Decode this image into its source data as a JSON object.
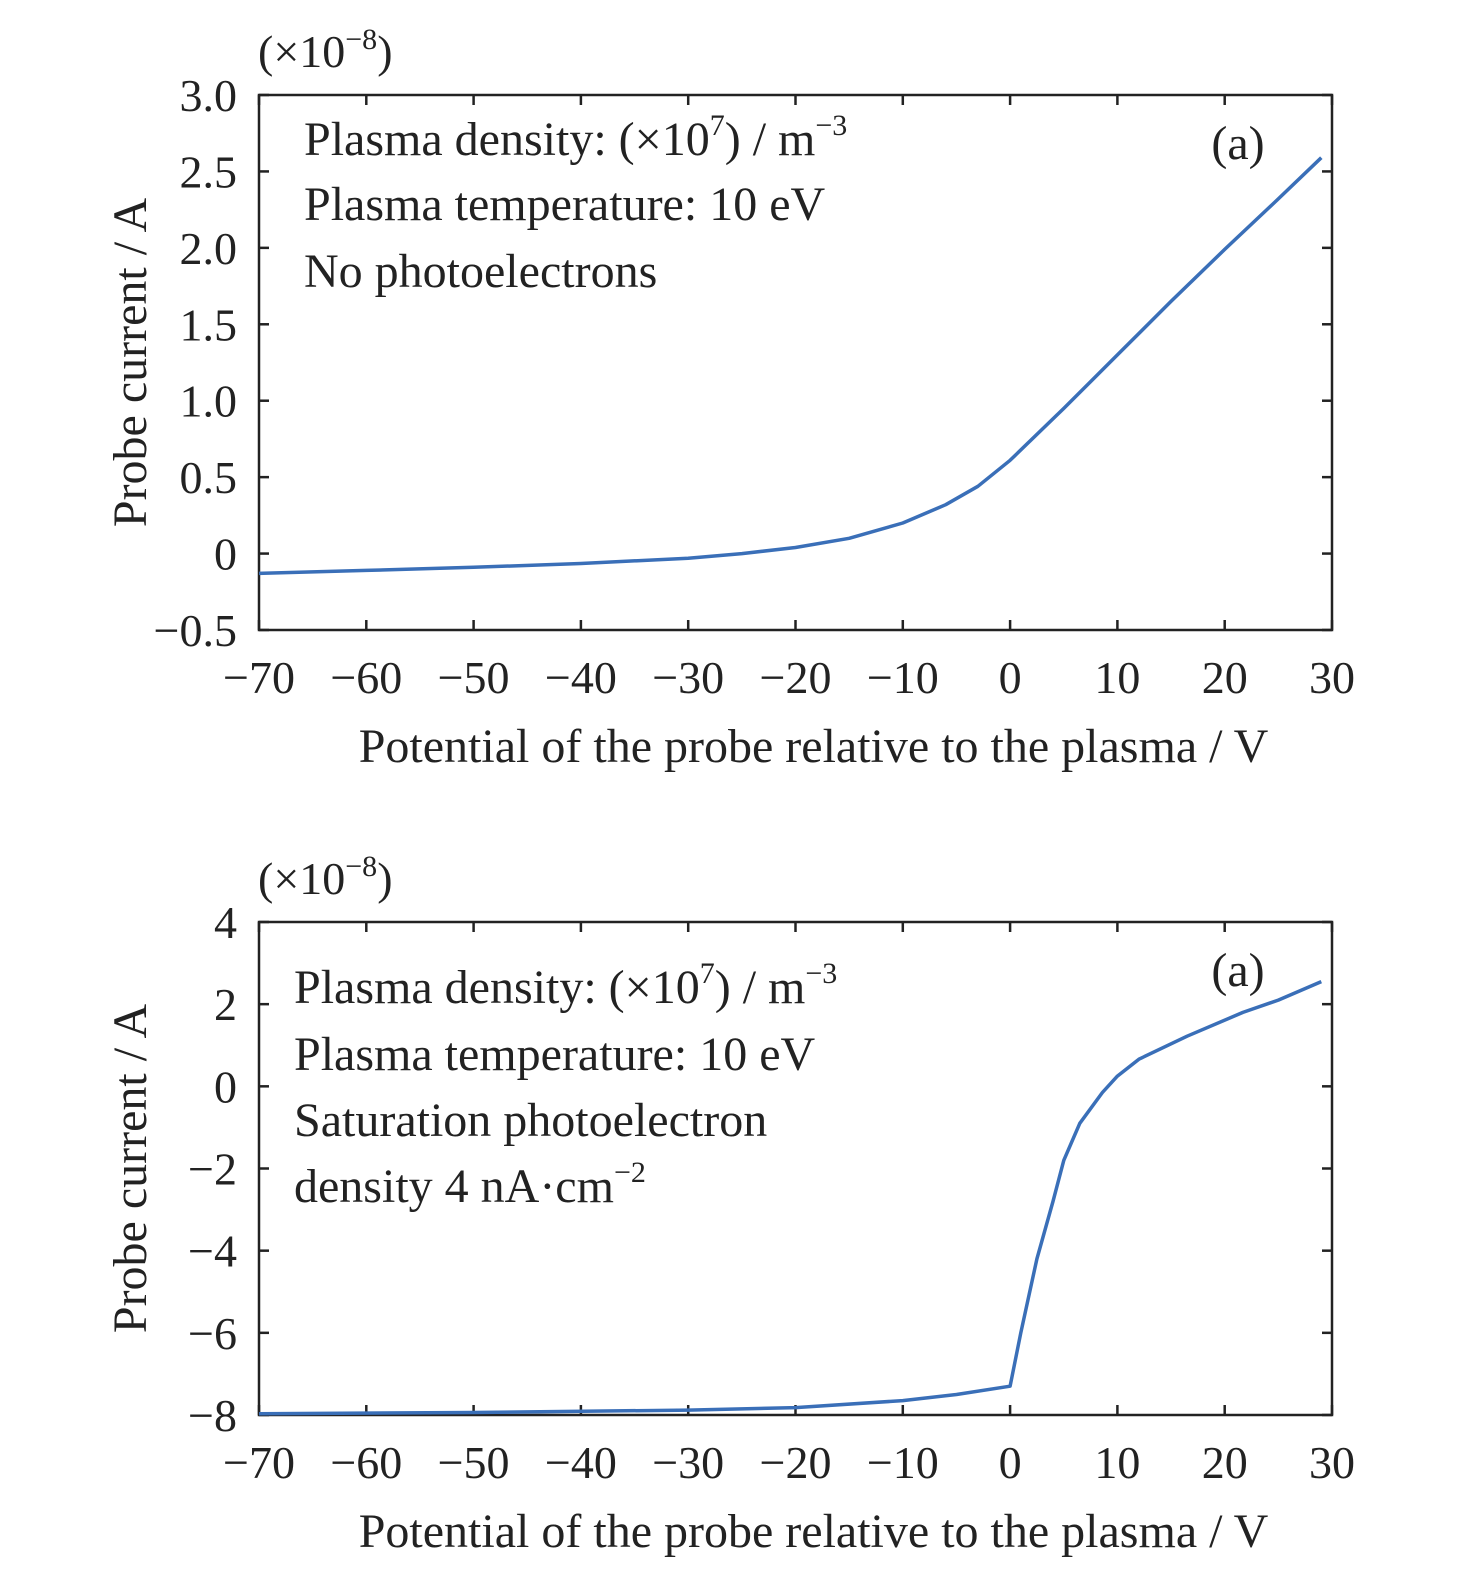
{
  "chart_data": [
    {
      "type": "line",
      "panel_label": "(a)",
      "multiplier": "(×10",
      "multiplier_exp": "−8",
      "multiplier_close": ")",
      "xlabel": "Potential of the probe relative to the plasma / V",
      "ylabel": "Probe current / A",
      "xlim": [
        -70,
        30
      ],
      "ylim": [
        -0.5,
        3.0
      ],
      "xticks": [
        -70,
        -60,
        -50,
        -40,
        -30,
        -20,
        -10,
        0,
        10,
        20,
        30
      ],
      "xtick_labels": [
        "−70",
        "−60",
        "−50",
        "−40",
        "−30",
        "−20",
        "−10",
        "0",
        "10",
        "20",
        "30"
      ],
      "yticks": [
        -0.5,
        0,
        0.5,
        1.0,
        1.5,
        2.0,
        2.5,
        3.0
      ],
      "ytick_labels": [
        "−0.5",
        "0",
        "0.5",
        "1.0",
        "1.5",
        "2.0",
        "2.5",
        "3.0"
      ],
      "annotations": [
        [
          "Plasma density: (×10",
          "7",
          ") / m",
          "−3"
        ],
        [
          "Plasma temperature: 10 eV"
        ],
        [
          "No photoelectrons"
        ]
      ],
      "color": "#3a6fb8",
      "x": [
        -70,
        -60,
        -50,
        -40,
        -30,
        -25,
        -20,
        -15,
        -10,
        -6,
        -3,
        0,
        5,
        10,
        15,
        20,
        25,
        29
      ],
      "y": [
        -0.13,
        -0.11,
        -0.09,
        -0.065,
        -0.03,
        0.0,
        0.04,
        0.1,
        0.2,
        0.32,
        0.44,
        0.61,
        0.95,
        1.3,
        1.65,
        1.99,
        2.32,
        2.59
      ]
    },
    {
      "type": "line",
      "panel_label": "(a)",
      "multiplier": "(×10",
      "multiplier_exp": "−8",
      "multiplier_close": ")",
      "xlabel": "Potential of the probe relative to the plasma / V",
      "ylabel": "Probe current / A",
      "xlim": [
        -70,
        30
      ],
      "ylim": [
        -8,
        4
      ],
      "xticks": [
        -70,
        -60,
        -50,
        -40,
        -30,
        -20,
        -10,
        0,
        10,
        20,
        30
      ],
      "xtick_labels": [
        "−70",
        "−60",
        "−50",
        "−40",
        "−30",
        "−20",
        "−10",
        "0",
        "10",
        "20",
        "30"
      ],
      "yticks": [
        -8,
        -6,
        -4,
        -2,
        0,
        2,
        4
      ],
      "ytick_labels": [
        "−8",
        "−6",
        "−4",
        "−2",
        "0",
        "2",
        "4"
      ],
      "annotations": [
        [
          "Plasma density: (×10",
          "7",
          ") / m",
          "−3"
        ],
        [
          "Plasma temperature: 10 eV"
        ],
        [
          "Saturation photoelectron"
        ],
        [
          "density 4 nA·cm",
          "−2"
        ]
      ],
      "color": "#3a6fb8",
      "x": [
        -70,
        -50,
        -30,
        -20,
        -10,
        -5,
        0,
        1,
        2.5,
        4,
        5,
        6.5,
        8.6,
        10,
        12,
        16.5,
        21.7,
        25,
        29
      ],
      "y": [
        -7.97,
        -7.94,
        -7.88,
        -7.82,
        -7.65,
        -7.5,
        -7.3,
        -6.0,
        -4.2,
        -2.8,
        -1.8,
        -0.9,
        -0.15,
        0.25,
        0.66,
        1.22,
        1.8,
        2.1,
        2.55
      ]
    }
  ]
}
